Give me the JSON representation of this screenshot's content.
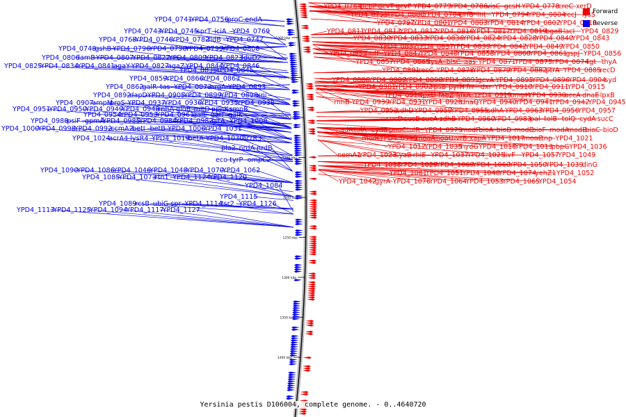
{
  "title": "Yersinia pestis D106004, complete genome. - 0..4640720",
  "colors": {
    "forward": "#ee0000",
    "reverse": "#0000ee",
    "axis": "#000000"
  },
  "legend": [
    {
      "label": "Forward",
      "color": "#ee0000"
    },
    {
      "label": "Reverse",
      "color": "#0000ee"
    }
  ],
  "axis_ticks": [
    "1000 kbp",
    "1050 kbp",
    "1100 kbp",
    "1150 kbp",
    "1200 kbp",
    "1250 kbp",
    "1300 kbp",
    "1350 kbp",
    "1400 kbp"
  ],
  "reverse_labels": [
    "YPD4_0741",
    "YPD4_0756",
    "proC",
    "endA",
    "YPD4_0743",
    "YPD4_0745",
    "sprT",
    "iciA",
    "YPD4_0769",
    "YPD4_0768",
    "YPD4_0746",
    "YPD4_0782",
    "fldB",
    "YPD4_0747",
    "YPD4_0748",
    "gshB",
    "YPD4_0796",
    "YPD4_0798",
    "YPD4_0799",
    "YPD4_0808",
    "YPD4_0806",
    "lamB",
    "YPD4_0807",
    "YPD4_0822",
    "YPD4_0809",
    "YPD4_0823",
    "lduD2",
    "YPD4_0825",
    "YPD4_0834",
    "YPD4_0841",
    "agaY",
    "YPD4_0827",
    "agaZ",
    "YPD4_0844",
    "YPD4_0846",
    "YPD4_0835",
    "YPD4_0845",
    "YPD4_0859",
    "YPD4_0866",
    "YPD4_0863",
    "YPD4_0862",
    "galR",
    "tas",
    "YPD4_0873",
    "argA",
    "YPD4_0893",
    "YPD4_0892",
    "dapD",
    "YPD4_0905",
    "YPD4_0899",
    "YPD4_0898",
    "xni",
    "YPD4_0907",
    "ampM",
    "proS",
    "YPD4_0937",
    "YPD4_0936",
    "YPD4_0935",
    "YPD4_0938",
    "YPD4_0951",
    "YPD4_0950",
    "YPD4_0949",
    "YPD4_0948",
    "rnhA",
    "gloB",
    "mltD",
    "ppnK",
    "smpB",
    "YPD4_0954",
    "YPD4_0953",
    "YPD4_0961",
    "galE",
    "galT",
    "galK",
    "YPD4_0988",
    "psiF",
    "gpmA",
    "YPD4_0985",
    "YPD4_0984",
    "YPD4_0982",
    "gltA",
    "YPD4_1008",
    "YPD4_1000",
    "YPD4_0998",
    "YPD4_0992",
    "ccmA2",
    "betI",
    "betB",
    "YPD4_1006",
    "YPD4_1031",
    "YPD4_1024",
    "acrA4",
    "lysR4",
    "YPD4_1019",
    "betA",
    "YPD4_1030",
    "acrR3",
    "pla2",
    "nrdA",
    "nrdB",
    "eco",
    "tyrP",
    "ompC2",
    "YPD4_1090",
    "YPD4_1086",
    "YPD4_1046",
    "YPD4_1048",
    "YPD4_1070",
    "YPD4_1062",
    "YPD4_1085",
    "YPD4_1073",
    "rtn1",
    "YPD4_1124",
    "YPD4_1120",
    "YPD4_1084",
    "YPD4_1115",
    "YPD4_1089",
    "rcsB",
    "ubiG",
    "spr",
    "YPD4_1114",
    "tsr2",
    "YPD4_1126",
    "YPD4_1113",
    "YPD4_1125",
    "YPD4_1094",
    "YPD4_1117",
    "YPD4_1127"
  ],
  "forward_labels": [
    "YPD4_0764",
    "pepP",
    "gcvT",
    "gcvP",
    "YPD4_0779",
    "YPD4_0786",
    "visC",
    "gcsH",
    "YPD4_0778",
    "creC",
    "xerD",
    "YPD4_0795",
    "YPD4_0800",
    "YPD4_0784",
    "prfB",
    "int",
    "YPD4_0794",
    "YPD4_0804",
    "recJ",
    "lysS",
    "YPD4_0797",
    "YPD4_0801",
    "YPD4_0803",
    "YPD4_0814",
    "YPD4_0802",
    "YPD4_0810",
    "YPD4_0811",
    "YPD4_0813",
    "YPD4_0812",
    "YPD4_0816",
    "YPD4_0817",
    "YPD4_0819",
    "bgaB",
    "lacI",
    "YPD4_0829",
    "YPD4_0830",
    "YPD4_0833",
    "YPD4_0836",
    "YPD4_0824",
    "YPD4_0828",
    "YPD4_0840",
    "YPD4_0843",
    "YPD4_0832",
    "YPD4_0837",
    "YPD4_0839",
    "YPD4_0842",
    "YPD4_0849",
    "YPD4_0850",
    "YPD4_0851",
    "hofF",
    "YPD4_0847",
    "YPD4_0848",
    "YPD4_0858",
    "YPD4_0860",
    "YPD4_0861",
    "gspJ",
    "YPD4_0856",
    "YPD4_0857",
    "YPD4_0865",
    "lysA",
    "bisC",
    "aas",
    "YPD4_0871",
    "YPD4_0875",
    "YPD4_0874",
    "lgt",
    "thyA",
    "YPD4_0881",
    "recC",
    "YPD4_0878",
    "YPD4_0879",
    "YPD4_0882",
    "ptrA",
    "YPD4_0885",
    "recD",
    "YPD4_0886",
    "YPD4_0889",
    "YPD4_0890",
    "YPD4_0891",
    "gcvA",
    "YPD4_0895",
    "YPD4_0896",
    "YPD4_0904",
    "syd",
    "YPD4_0901",
    "YPD4_0902",
    "rpsB",
    "pyrH",
    "frr",
    "dxr",
    "YPD4_0910",
    "YPD4_0911",
    "YPD4_0915",
    "YPD4_0916",
    "lpxD",
    "fabZ",
    "lpxA",
    "YPD4_0919",
    "ompH",
    "YPD4_0930",
    "accA",
    "dnaE",
    "lpxB",
    "rnhB",
    "YPD4_0939",
    "YPD4_0931",
    "YPD4_0928",
    "dnaQ",
    "YPD4_0940",
    "YPD4_0941",
    "YPD4_0942",
    "YPD4_0945",
    "YPD4_0952",
    "sdhD",
    "YPD4_0959",
    "YPD4_0955",
    "sdhA",
    "YPD4_0963",
    "YPD4_0956",
    "YPD4_0957",
    "sucD",
    "sucB",
    "sucA",
    "sdhB",
    "YPD4_0960",
    "YPD4_0983",
    "pal",
    "tolB",
    "tolQ",
    "cydA",
    "sucC",
    "nadA",
    "tolA",
    "cydB",
    "pnuC",
    "tolR",
    "YPD4_0979",
    "modF",
    "bioA",
    "bioB",
    "modE",
    "bioF",
    "modA",
    "modB",
    "bioC",
    "bioD",
    "modC",
    "YPD4_0999",
    "moaA",
    "moaC",
    "uvrB",
    "xapA",
    "YPD4_1017",
    "moaE",
    "tnp",
    "YPD4_1021",
    "YPD4_1012",
    "YPD4_1035",
    "hydG",
    "YPD4_1018",
    "YPD4_1013",
    "pbpG",
    "YPD4_1036",
    "nemA1",
    "YPD4_1023",
    "cyaB",
    "rhlE",
    "YPD4_1037",
    "YPD4_1025",
    "livF",
    "YPD4_1057",
    "YPD4_1049",
    "YPD4_1038",
    "YPD4_1029",
    "YPD4_1069",
    "YPD4_1060",
    "YPD4_1050",
    "YPD4_1039",
    "dinG",
    "YPD4_1061",
    "YPD4_1051",
    "YPD4_1040",
    "YPD4_1074",
    "yehZ1",
    "YPD4_1052",
    "YPD4_1042",
    "gyrA",
    "YPD4_1076",
    "YPD4_1064",
    "YPD4_1053",
    "YPD4_1065",
    "YPD4_1054"
  ]
}
